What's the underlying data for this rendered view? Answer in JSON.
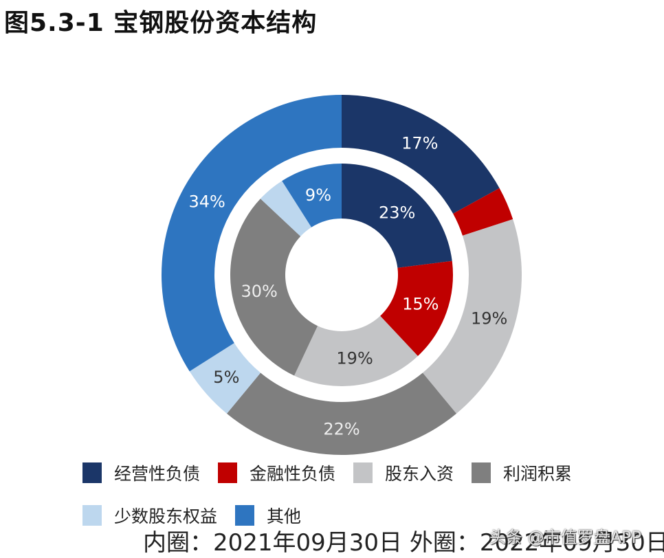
{
  "title": "图5.3-1 宝钢股份资本结构",
  "chart_data": {
    "type": "pie",
    "subtype": "nested-donut",
    "title": "图5.3-1 宝钢股份资本结构",
    "categories": [
      "经营性负债",
      "金融性负债",
      "股东入资",
      "利润积累",
      "少数股东权益",
      "其他"
    ],
    "colors": [
      "#1B3668",
      "#C00000",
      "#C3C4C6",
      "#7F7F7F",
      "#BDD7EE",
      "#2E75C0"
    ],
    "series": [
      {
        "name": "内圈: 2021年09月30日",
        "ring": "inner",
        "values": [
          23,
          15,
          19,
          30,
          4,
          9
        ],
        "labels": [
          "23%",
          "15%",
          "19%",
          "30%",
          "",
          "9%"
        ]
      },
      {
        "name": "外圈: 2022年09月30日",
        "ring": "outer",
        "values": [
          17,
          3,
          19,
          22,
          5,
          34
        ],
        "labels": [
          "17%",
          "",
          "19%",
          "22%",
          "5%",
          "34%"
        ]
      }
    ],
    "legend_position": "bottom",
    "unit": "%"
  },
  "legend": {
    "items": [
      {
        "label": "经营性负债",
        "color": "#1B3668"
      },
      {
        "label": "金融性负债",
        "color": "#C00000"
      },
      {
        "label": "股东入资",
        "color": "#C3C4C6"
      },
      {
        "label": "利润积累",
        "color": "#7F7F7F"
      },
      {
        "label": "少数股东权益",
        "color": "#BDD7EE"
      },
      {
        "label": "其他",
        "color": "#2E75C0"
      }
    ]
  },
  "footnote": "内圈：2021年09月30日 外圈：2022年09月30日",
  "watermark": "头条 @市值罗盘APP"
}
